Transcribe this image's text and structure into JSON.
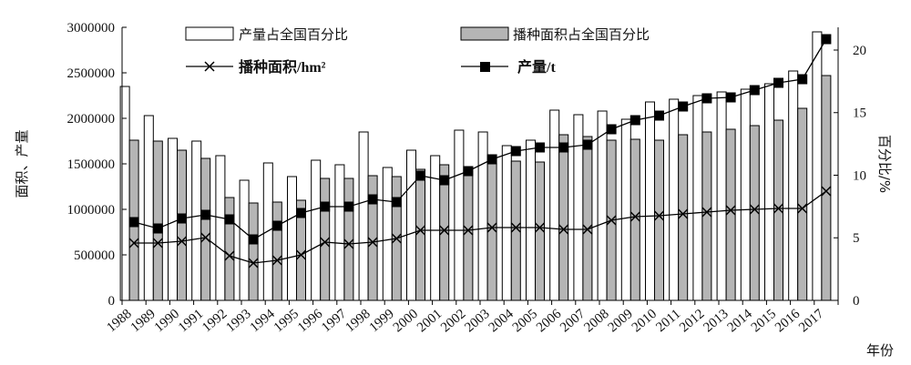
{
  "chart_data": {
    "type": "bar",
    "title": "",
    "xlabel": "年份",
    "ylabel_left": "面积、产量",
    "ylabel_right": "百分比/%",
    "ylim_left": [
      0,
      3000000
    ],
    "ylim_right": [
      0,
      21.818
    ],
    "yticks_left": [
      "0",
      "500000",
      "1000000",
      "1500000",
      "2000000",
      "2500000",
      "3000000"
    ],
    "yticks_right": [
      "0",
      "5",
      "10",
      "15",
      "20"
    ],
    "categories": [
      "1988",
      "1989",
      "1990",
      "1991",
      "1992",
      "1993",
      "1994",
      "1995",
      "1996",
      "1997",
      "1998",
      "1999",
      "2000",
      "2001",
      "2002",
      "2003",
      "2004",
      "2005",
      "2006",
      "2007",
      "2008",
      "2009",
      "2010",
      "2011",
      "2012",
      "2013",
      "2014",
      "2015",
      "2016",
      "2017"
    ],
    "legend": {
      "production_share": "产量占全国百分比",
      "area_share": "播种面积占全国百分比",
      "area": "播种面积/hm²",
      "production": "产量/t"
    },
    "series": [
      {
        "name": "产量占全国百分比",
        "kind": "bar",
        "axis": "left",
        "color": "#ffffff",
        "values": [
          2350000,
          2030000,
          1780000,
          1750000,
          1590000,
          1320000,
          1510000,
          1360000,
          1540000,
          1490000,
          1850000,
          1460000,
          1650000,
          1590000,
          1870000,
          1850000,
          1700000,
          1760000,
          2090000,
          2040000,
          2080000,
          1990000,
          2180000,
          2210000,
          2250000,
          2290000,
          2320000,
          2380000,
          2520000,
          2950000
        ]
      },
      {
        "name": "播种面积占全国百分比",
        "kind": "bar",
        "axis": "left",
        "color": "#b5b5b5",
        "values": [
          1760000,
          1750000,
          1650000,
          1560000,
          1130000,
          1070000,
          1080000,
          1100000,
          1340000,
          1340000,
          1370000,
          1360000,
          1440000,
          1490000,
          1470000,
          1500000,
          1530000,
          1520000,
          1820000,
          1800000,
          1760000,
          1770000,
          1760000,
          1820000,
          1850000,
          1880000,
          1920000,
          1980000,
          2110000,
          2470000
        ]
      },
      {
        "name": "播种面积/hm²",
        "kind": "line",
        "marker": "x",
        "axis": "left",
        "color": "#000000",
        "values": [
          630000,
          630000,
          650000,
          690000,
          490000,
          410000,
          440000,
          500000,
          640000,
          620000,
          640000,
          680000,
          770000,
          770000,
          770000,
          800000,
          800000,
          800000,
          780000,
          780000,
          880000,
          920000,
          930000,
          950000,
          970000,
          990000,
          1000000,
          1010000,
          1010000,
          1200000
        ]
      },
      {
        "name": "产量/t",
        "kind": "line",
        "marker": "square",
        "axis": "left",
        "color": "#000000",
        "values": [
          860000,
          790000,
          900000,
          940000,
          890000,
          670000,
          820000,
          960000,
          1030000,
          1030000,
          1110000,
          1080000,
          1370000,
          1320000,
          1420000,
          1550000,
          1640000,
          1680000,
          1680000,
          1710000,
          1880000,
          1980000,
          2030000,
          2130000,
          2220000,
          2230000,
          2310000,
          2390000,
          2430000,
          2870000
        ]
      }
    ]
  }
}
